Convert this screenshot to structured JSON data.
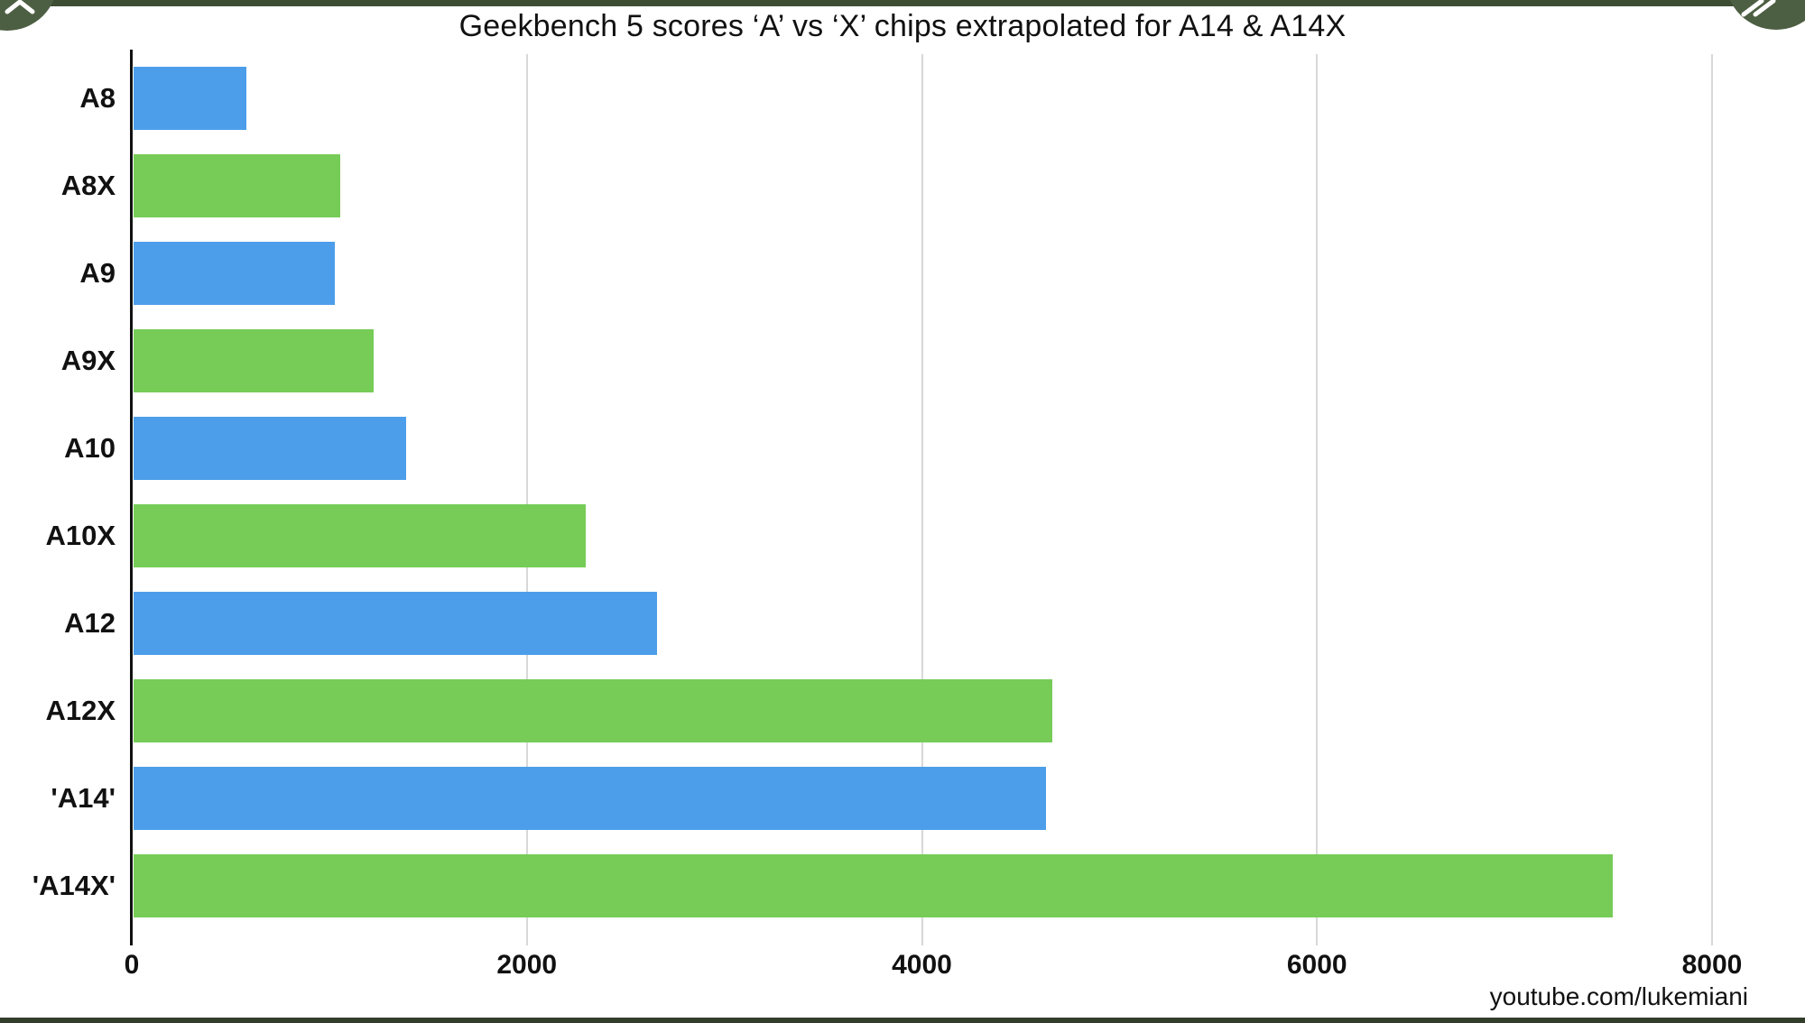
{
  "watermark": "youtube.com/lukemiani",
  "controls": {
    "collapse_icon": "chevron-up",
    "fast_forward_icon": "double-slash"
  },
  "colors": {
    "top_bar": "#3d4d34",
    "bottom_bar": "#333d2c",
    "overlay_button": "#4d5f43",
    "axis": "#111111",
    "gridline": "#d8d8d8",
    "background": "#ffffff",
    "text": "#111111"
  },
  "chart_data": {
    "type": "bar",
    "orientation": "horizontal",
    "title": "Geekbench 5 scores ‘A’ vs ‘X’ chips extrapolated for A14 & A14X",
    "categories": [
      "A8",
      "A8X",
      "A9",
      "A9X",
      "A10",
      "A10X",
      "A12",
      "A12X",
      "'A14'",
      "'A14X'"
    ],
    "values": [
      570,
      1045,
      1020,
      1215,
      1380,
      2290,
      2650,
      4650,
      4620,
      7490
    ],
    "series_key": [
      "A",
      "X",
      "A",
      "X",
      "A",
      "X",
      "A",
      "X",
      "A",
      "X"
    ],
    "series_colors": {
      "A": "#4d9eea",
      "X": "#76cc57"
    },
    "xticks": [
      0,
      2000,
      4000,
      6000,
      8000
    ],
    "xtick_labels": [
      "0",
      "2000",
      "4000",
      "6000",
      "8000"
    ],
    "xlim": [
      0,
      8000
    ],
    "grid": "vertical-gridlines",
    "legend": "none",
    "ylabel": "",
    "xlabel": ""
  }
}
